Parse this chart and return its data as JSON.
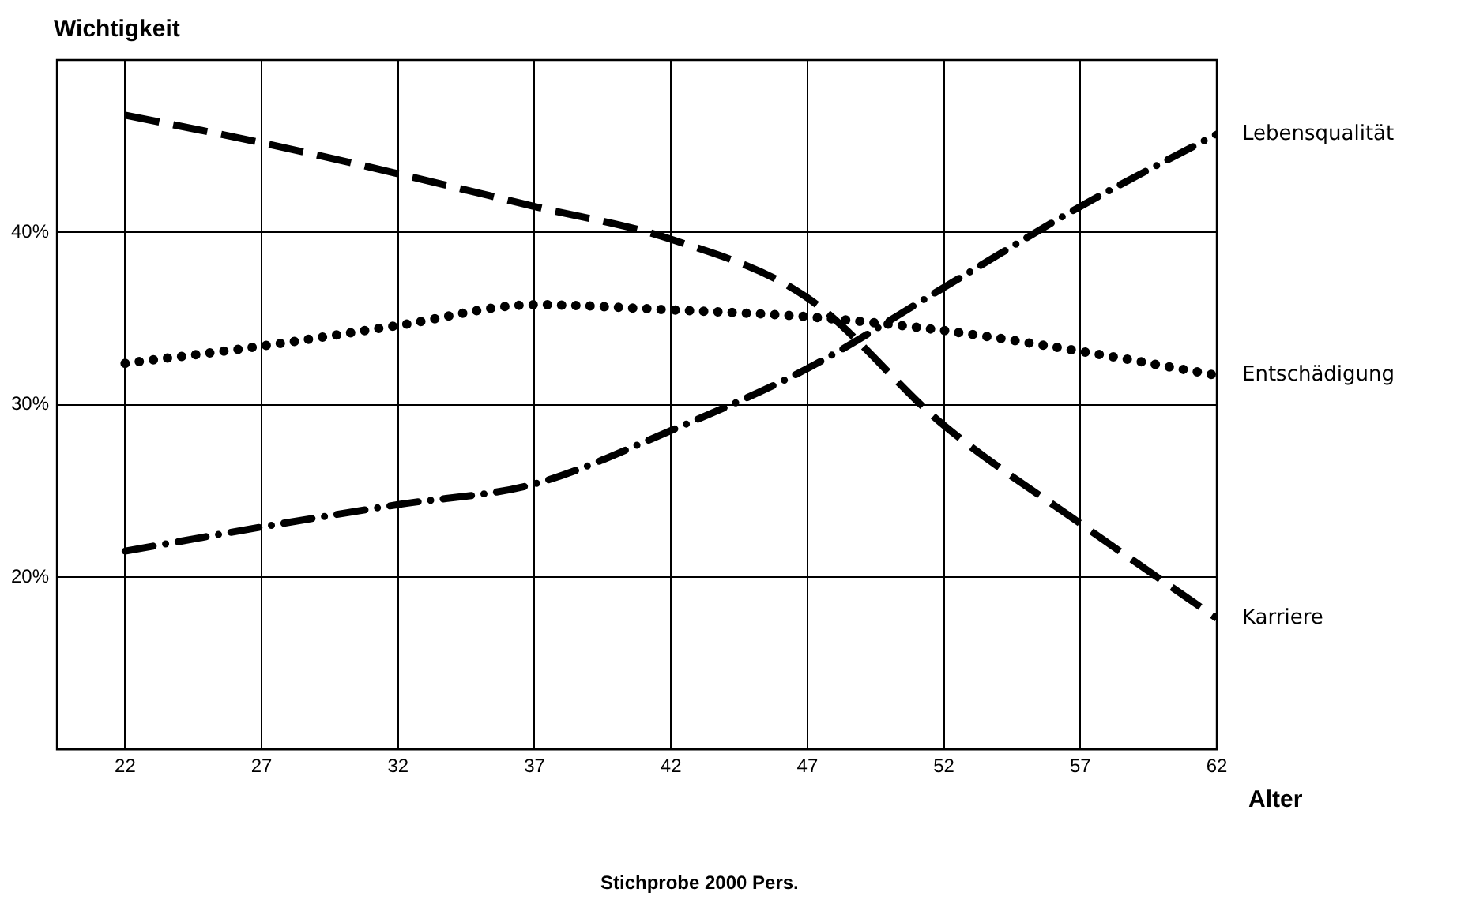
{
  "chart_data": {
    "type": "line",
    "ylabel": "Wichtigkeit",
    "xlabel": "Alter",
    "annotations": [
      "Stichprobe 2000 Pers."
    ],
    "x": [
      22,
      27,
      32,
      37,
      42,
      47,
      52,
      57,
      62
    ],
    "xlim": [
      19.5,
      62
    ],
    "xticks": [
      22,
      27,
      32,
      37,
      42,
      47,
      52,
      57,
      62
    ],
    "ylim": [
      10,
      50
    ],
    "yticks": [
      {
        "value": 20,
        "label": "20%"
      },
      {
        "value": 30,
        "label": "30%"
      },
      {
        "value": 40,
        "label": "40%"
      }
    ],
    "grid": true,
    "legend": false,
    "marker": "none",
    "series": [
      {
        "name": "Lebensqualität",
        "color": "#000000",
        "line_style": "dashdot",
        "values": [
          21.5,
          22.9,
          24.2,
          25.4,
          28.5,
          32.1,
          36.8,
          41.5,
          45.7
        ]
      },
      {
        "name": "Entschädigung",
        "color": "#000000",
        "line_style": "dotted",
        "values": [
          32.4,
          33.4,
          34.6,
          35.8,
          35.5,
          35.1,
          34.3,
          33.1,
          31.7
        ]
      },
      {
        "name": "Karriere",
        "color": "#000000",
        "line_style": "dashed",
        "values": [
          46.8,
          45.2,
          43.4,
          41.5,
          39.6,
          36.2,
          28.8,
          23.1,
          17.6
        ]
      }
    ]
  }
}
